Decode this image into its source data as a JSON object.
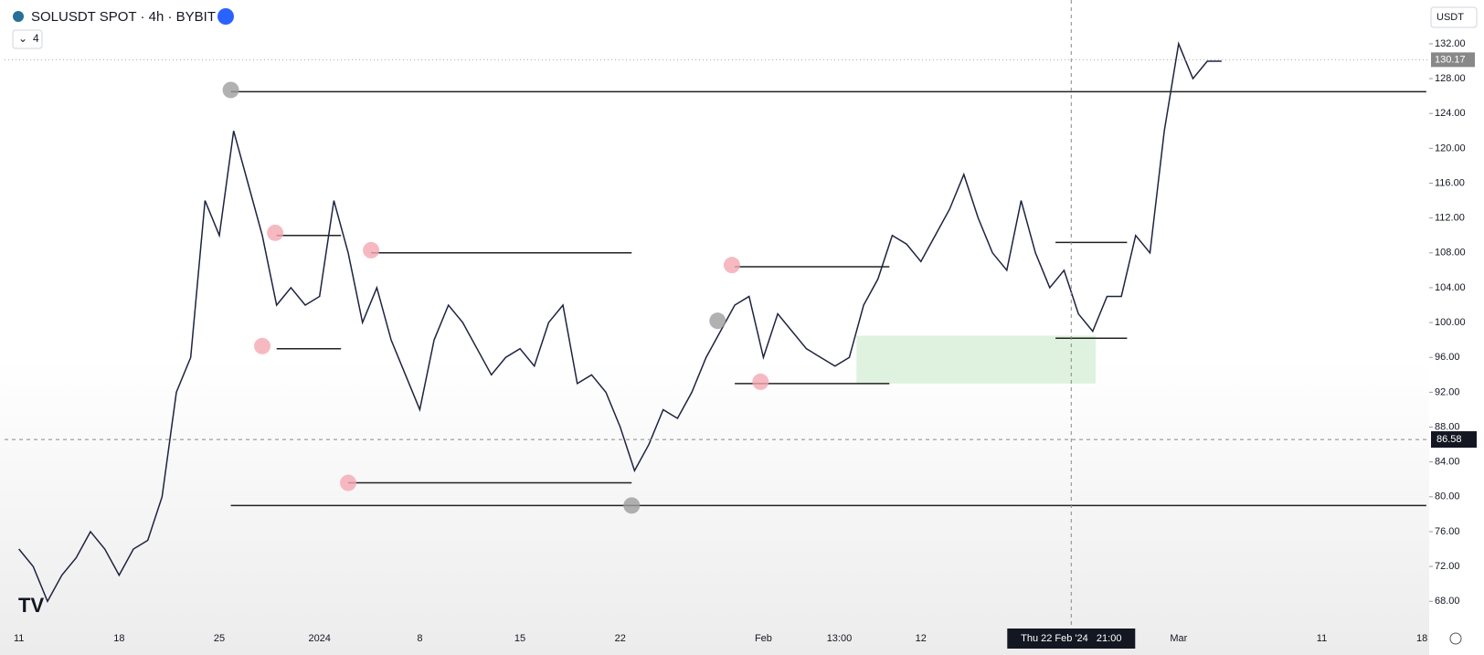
{
  "chart_data": {
    "type": "line",
    "title": "SOLUSDT SPOT · 4h · BYBIT",
    "indicator_count": "4",
    "currency": "USDT",
    "x": [
      0,
      1,
      2,
      3,
      4,
      5,
      6,
      7,
      8,
      9,
      10,
      11,
      12,
      13,
      14,
      15,
      16,
      17,
      18,
      19,
      20,
      21,
      22,
      23,
      24,
      25,
      26,
      27,
      28,
      29,
      30,
      31,
      32,
      33,
      34,
      35,
      36,
      37,
      38,
      39,
      40,
      41,
      42,
      43,
      44,
      45,
      46,
      47,
      48,
      49,
      50,
      51,
      52,
      53,
      54,
      55,
      56,
      57,
      58,
      59,
      60,
      61,
      62,
      63,
      64,
      65,
      66,
      67,
      68,
      69,
      70,
      71,
      72,
      73,
      74,
      75,
      76,
      77,
      78,
      79,
      80,
      81,
      82,
      83,
      84
    ],
    "series": [
      {
        "name": "SOLUSDT",
        "color": "#1e2340",
        "values": [
          74,
          72,
          68,
          71,
          73,
          76,
          74,
          71,
          74,
          75,
          80,
          92,
          96,
          114,
          110,
          122,
          116,
          110,
          102,
          104,
          102,
          103,
          114,
          108,
          100,
          104,
          98,
          94,
          90,
          98,
          102,
          100,
          97,
          94,
          96,
          97,
          95,
          100,
          102,
          93,
          94,
          92,
          88,
          83,
          86,
          90,
          89,
          92,
          96,
          99,
          102,
          103,
          96,
          101,
          99,
          97,
          96,
          95,
          96,
          102,
          105,
          110,
          109,
          107,
          110,
          113,
          117,
          112,
          108,
          106,
          114,
          108,
          104,
          106,
          101,
          99,
          103,
          103,
          110,
          108,
          122,
          132,
          128,
          130,
          130
        ]
      }
    ],
    "xlim": [
      -1,
      98.5
    ],
    "ylim": [
      65.3,
      136.5
    ],
    "xticks": [
      {
        "value": 0,
        "label": "11"
      },
      {
        "value": 7,
        "label": "18"
      },
      {
        "value": 14,
        "label": "25"
      },
      {
        "value": 21,
        "label": "2024"
      },
      {
        "value": 28,
        "label": "8"
      },
      {
        "value": 35,
        "label": "15"
      },
      {
        "value": 42,
        "label": "22"
      },
      {
        "value": 52,
        "label": "Feb"
      },
      {
        "value": 57.3,
        "label": "13:00"
      },
      {
        "value": 63,
        "label": "12"
      },
      {
        "value": 81,
        "label": "Mar"
      },
      {
        "value": 91,
        "label": "11"
      },
      {
        "value": 98,
        "label": "18"
      }
    ],
    "yticks": [
      {
        "value": 68,
        "label": "68.00"
      },
      {
        "value": 72,
        "label": "72.00"
      },
      {
        "value": 76,
        "label": "76.00"
      },
      {
        "value": 80,
        "label": "80.00"
      },
      {
        "value": 84,
        "label": "84.00"
      },
      {
        "value": 88,
        "label": "88.00"
      },
      {
        "value": 92,
        "label": "92.00"
      },
      {
        "value": 96,
        "label": "96.00"
      },
      {
        "value": 100,
        "label": "100.00"
      },
      {
        "value": 104,
        "label": "104.00"
      },
      {
        "value": 108,
        "label": "108.00"
      },
      {
        "value": 112,
        "label": "112.00"
      },
      {
        "value": 116,
        "label": "116.00"
      },
      {
        "value": 120,
        "label": "120.00"
      },
      {
        "value": 124,
        "label": "124.00"
      },
      {
        "value": 128,
        "label": "128.00"
      },
      {
        "value": 132,
        "label": "132.00"
      }
    ],
    "last_price": {
      "value": 130.17,
      "label": "130.17"
    },
    "crosshair": {
      "x": 73.5,
      "x_label": "Thu 22 Feb '24   21:00",
      "y": 86.58,
      "y_label": "86.58"
    },
    "levels": [
      {
        "y": 126.5,
        "x0": 14.8,
        "x1": 98.3
      },
      {
        "y": 79,
        "x0": 14.8,
        "x1": 98.3
      },
      {
        "y": 108,
        "x0": 24.6,
        "x1": 42.8
      },
      {
        "y": 81.6,
        "x0": 23,
        "x1": 42.8
      },
      {
        "y": 110,
        "x0": 18,
        "x1": 22.5
      },
      {
        "y": 97,
        "x0": 18,
        "x1": 22.5
      },
      {
        "y": 106.4,
        "x0": 50,
        "x1": 60.8
      },
      {
        "y": 93,
        "x0": 50,
        "x1": 60.8
      },
      {
        "y": 109.2,
        "x0": 72.4,
        "x1": 77.4
      },
      {
        "y": 98.2,
        "x0": 72.4,
        "x1": 77.4
      }
    ],
    "zone": {
      "x0": 58.5,
      "x1": 75.2,
      "y0": 93,
      "y1": 98.5,
      "color": "#dff2df"
    },
    "markers": [
      {
        "x": 14.8,
        "y": 126.7,
        "color": "#9e9e9e"
      },
      {
        "x": 42.8,
        "y": 79,
        "color": "#9e9e9e"
      },
      {
        "x": 48.8,
        "y": 100.2,
        "color": "#9e9e9e"
      },
      {
        "x": 17.9,
        "y": 110.3,
        "color": "#f4a7b3"
      },
      {
        "x": 17,
        "y": 97.3,
        "color": "#f4a7b3"
      },
      {
        "x": 24.6,
        "y": 108.3,
        "color": "#f4a7b3"
      },
      {
        "x": 23,
        "y": 81.6,
        "color": "#f4a7b3"
      },
      {
        "x": 49.8,
        "y": 106.6,
        "color": "#f4a7b3"
      },
      {
        "x": 51.8,
        "y": 93.2,
        "color": "#f4a7b3"
      }
    ]
  }
}
